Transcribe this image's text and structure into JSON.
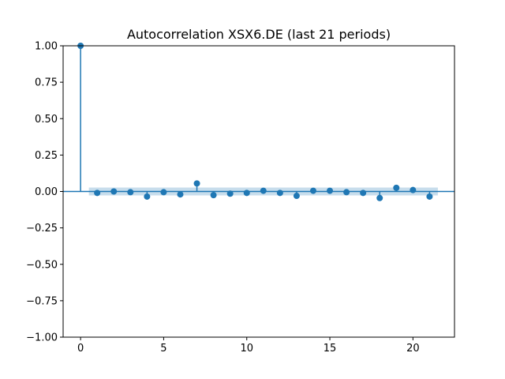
{
  "chart_data": {
    "type": "stem",
    "title": "Autocorrelation XSX6.DE (last 21 periods)",
    "xlabel": "",
    "ylabel": "",
    "xlim": [
      -1.05,
      22.5
    ],
    "ylim": [
      -1.0,
      1.0
    ],
    "x_ticks": [
      0,
      5,
      10,
      15,
      20
    ],
    "y_ticks": [
      1.0,
      0.75,
      0.5,
      0.25,
      0.0,
      -0.25,
      -0.5,
      -0.75,
      -1.0
    ],
    "x_tick_labels": [
      "0",
      "5",
      "10",
      "15",
      "20"
    ],
    "y_tick_labels": [
      "1.00",
      "0.75",
      "0.50",
      "0.25",
      "0.00",
      "−0.25",
      "−0.50",
      "−0.75",
      "−1.00"
    ],
    "lags": [
      0,
      1,
      2,
      3,
      4,
      5,
      6,
      7,
      8,
      9,
      10,
      11,
      12,
      13,
      14,
      15,
      16,
      17,
      18,
      19,
      20,
      21
    ],
    "values": [
      1.0,
      -0.01,
      0.0,
      -0.005,
      -0.035,
      -0.005,
      -0.02,
      0.055,
      -0.025,
      -0.015,
      -0.01,
      0.005,
      -0.01,
      -0.03,
      0.005,
      0.005,
      -0.005,
      -0.01,
      -0.045,
      0.025,
      0.01,
      -0.035
    ],
    "confidence_band": {
      "x_start": 0.5,
      "x_end": 21.5,
      "lower": -0.027,
      "upper": 0.027
    },
    "grid": false,
    "colors": {
      "series": "#1f77b4",
      "band": "#1f77b4"
    }
  }
}
